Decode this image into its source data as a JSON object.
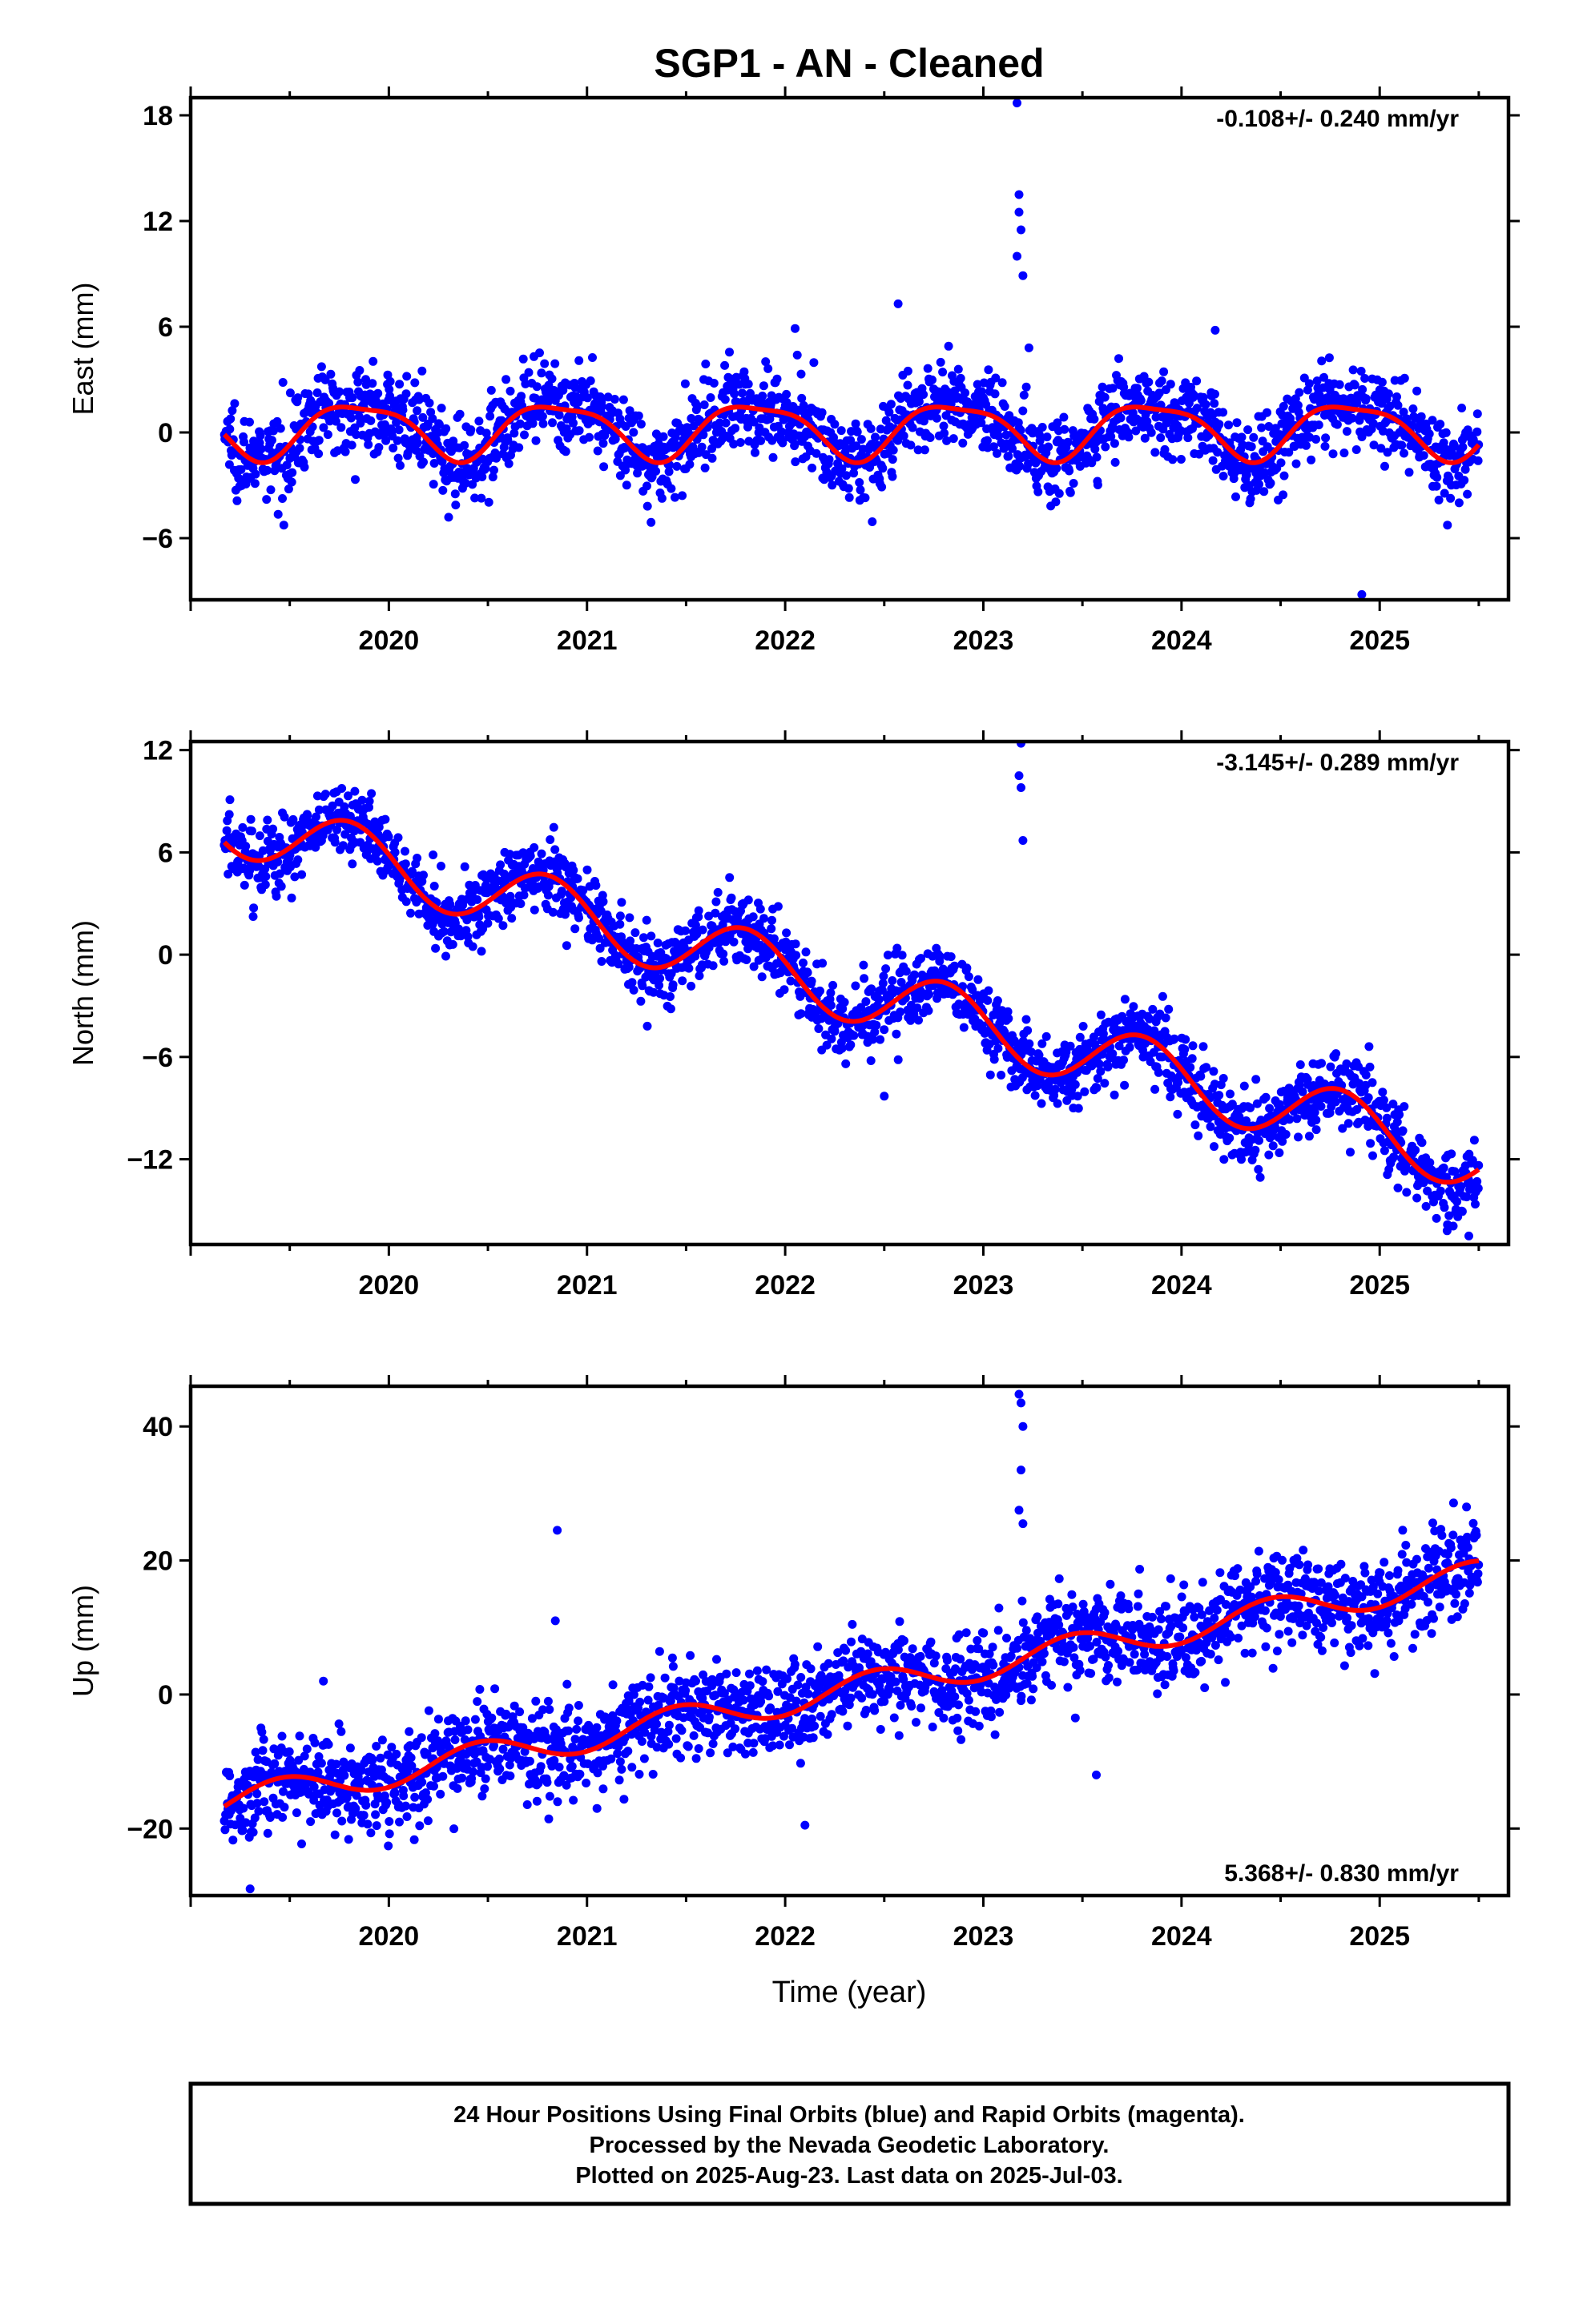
{
  "title": "SGP1  - AN - Cleaned",
  "xlabel": "Time (year)",
  "footer": {
    "lines": [
      "24 Hour Positions Using Final Orbits (blue) and Rapid Orbits (magenta).",
      "Processed by the Nevada Geodetic Laboratory.",
      "Plotted on 2025-Aug-23. Last data on 2025-Jul-03."
    ]
  },
  "colors": {
    "points": "#0000ff",
    "model": "#ff0000",
    "frame": "#000000"
  },
  "chart_data": [
    {
      "type": "scatter",
      "name": "east",
      "ylabel": "East (mm)",
      "rate_text": "-0.108+/- 0.240 mm/yr",
      "rate_position": "top-right",
      "xlim": [
        2019.0,
        2025.65
      ],
      "ylim": [
        -9.5,
        19
      ],
      "yticks": [
        -6,
        0,
        6,
        12,
        18
      ],
      "xticks": [
        2020,
        2021,
        2022,
        2023,
        2024,
        2025
      ],
      "rate_mm_per_yr": -0.108,
      "seasonal": {
        "offset": 0.2,
        "amplitude_mm": 1.7,
        "phase_rad": 0.2,
        "noise_mm": 1.2,
        "start": 2019.17,
        "end": 2025.5
      },
      "outliers": [
        [
          2023.17,
          18.7
        ],
        [
          2023.18,
          13.5
        ],
        [
          2023.18,
          12.5
        ],
        [
          2023.19,
          11.5
        ],
        [
          2023.17,
          10.0
        ],
        [
          2023.2,
          8.9
        ],
        [
          2023.23,
          4.8
        ],
        [
          2024.91,
          -9.2
        ],
        [
          2022.57,
          7.3
        ],
        [
          2024.17,
          5.8
        ],
        [
          2022.05,
          5.9
        ]
      ],
      "grid": false
    },
    {
      "type": "scatter",
      "name": "north",
      "ylabel": "North (mm)",
      "rate_text": "-3.145+/- 0.289 mm/yr",
      "rate_position": "top-right",
      "xlim": [
        2019.0,
        2025.65
      ],
      "ylim": [
        -17,
        12.5
      ],
      "yticks": [
        -12,
        -6,
        0,
        6,
        12
      ],
      "xticks": [
        2020,
        2021,
        2022,
        2023,
        2024,
        2025
      ],
      "rate_mm_per_yr": -3.145,
      "trend_at_2019_2_mm": 7.8,
      "seasonal": {
        "amplitude_mm": 1.9,
        "phase_rad": 0.0,
        "noise_mm": 1.1,
        "start": 2019.17,
        "end": 2025.5
      },
      "outliers": [
        [
          2023.19,
          12.4
        ],
        [
          2023.18,
          10.5
        ],
        [
          2023.19,
          9.8
        ],
        [
          2023.2,
          6.7
        ],
        [
          2022.5,
          -8.3
        ],
        [
          2025.45,
          -16.5
        ]
      ],
      "grid": false
    },
    {
      "type": "scatter",
      "name": "up",
      "ylabel": "Up (mm)",
      "rate_text": "5.368+/- 0.830 mm/yr",
      "rate_position": "bottom-right",
      "xlim": [
        2019.0,
        2025.65
      ],
      "ylim": [
        -30,
        46
      ],
      "yticks": [
        -20,
        0,
        20,
        40
      ],
      "xticks": [
        2020,
        2021,
        2022,
        2023,
        2024,
        2025
      ],
      "rate_mm_per_yr": 5.368,
      "trend_at_2019_2_mm": -16,
      "seasonal": {
        "amplitude_mm": 2.2,
        "phase_rad": 1.2,
        "noise_mm": 3.5,
        "start": 2019.17,
        "end": 2025.5
      },
      "outliers": [
        [
          2023.18,
          44.8
        ],
        [
          2023.19,
          43.5
        ],
        [
          2023.2,
          40.0
        ],
        [
          2023.19,
          33.5
        ],
        [
          2023.18,
          27.5
        ],
        [
          2023.2,
          25.5
        ],
        [
          2020.85,
          24.5
        ],
        [
          2020.84,
          11.0
        ],
        [
          2019.67,
          2.0
        ],
        [
          2022.1,
          -19.5
        ],
        [
          2023.57,
          -12.0
        ],
        [
          2019.3,
          -29.0
        ]
      ],
      "grid": false
    }
  ]
}
